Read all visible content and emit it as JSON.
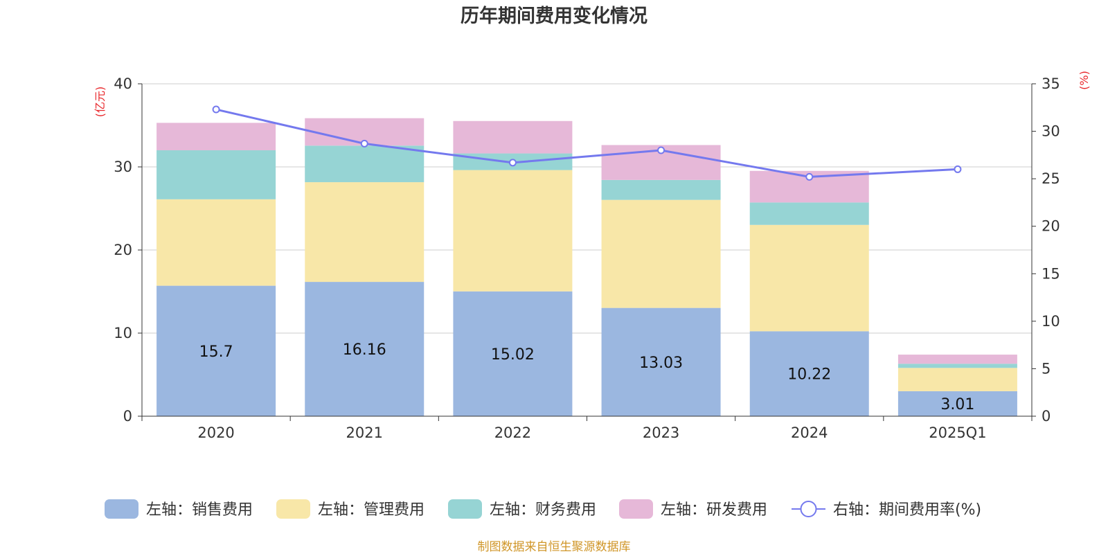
{
  "chart_data": {
    "type": "bar",
    "stacked": true,
    "title": "历年期间费用变化情况",
    "categories": [
      "2020",
      "2021",
      "2022",
      "2023",
      "2024",
      "2025Q1"
    ],
    "left_axis": {
      "unit": "(亿元)",
      "ylim": [
        0,
        40
      ],
      "ticks": [
        "0",
        "10",
        "20",
        "30",
        "40"
      ]
    },
    "right_axis": {
      "unit": "(%)",
      "ylim": [
        0,
        35
      ],
      "ticks": [
        "0",
        "5",
        "10",
        "15",
        "20",
        "25",
        "30",
        "35"
      ]
    },
    "series": [
      {
        "name": "左轴：销售费用",
        "type": "bar",
        "axis": "left",
        "color": "#9bb7e0",
        "values": [
          15.7,
          16.16,
          15.02,
          13.03,
          10.22,
          3.01
        ],
        "labels": [
          "15.7",
          "16.16",
          "15.02",
          "13.03",
          "10.22",
          "3.01"
        ]
      },
      {
        "name": "左轴：管理费用",
        "type": "bar",
        "axis": "left",
        "color": "#f8e7a8",
        "values": [
          10.4,
          12.0,
          14.6,
          13.0,
          12.8,
          2.8
        ]
      },
      {
        "name": "左轴：财务费用",
        "type": "bar",
        "axis": "left",
        "color": "#96d4d4",
        "values": [
          5.9,
          4.4,
          2.0,
          2.4,
          2.7,
          0.5
        ]
      },
      {
        "name": "左轴：研发费用",
        "type": "bar",
        "axis": "left",
        "color": "#e6b8d8",
        "values": [
          3.3,
          3.3,
          3.9,
          4.2,
          3.8,
          1.1
        ]
      },
      {
        "name": "右轴：期间费用率(%)",
        "type": "line",
        "axis": "right",
        "color": "#7479ee",
        "values": [
          32.3,
          28.7,
          26.7,
          28.0,
          25.2,
          26.0
        ]
      }
    ],
    "grid": true,
    "legend_position": "bottom",
    "colors": {
      "text": "#333333",
      "unit": "#e8262a",
      "grid": "#cccccc",
      "source": "#d09628"
    }
  },
  "source_note": "制图数据来自恒生聚源数据库"
}
